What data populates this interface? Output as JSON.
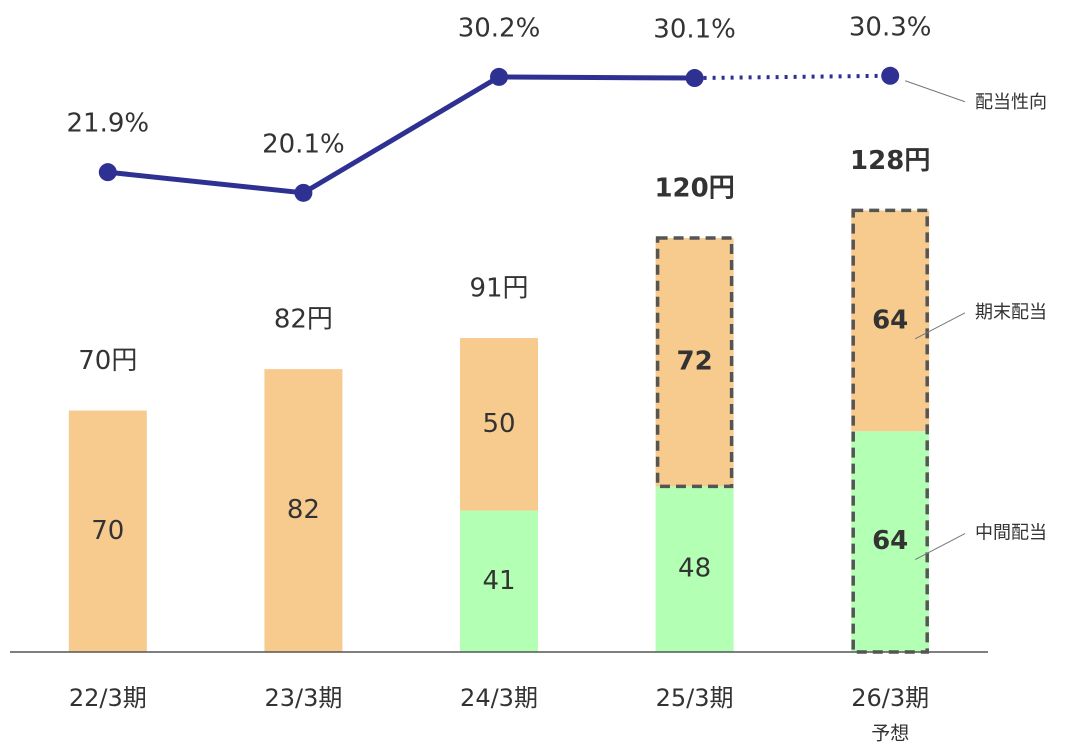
{
  "chart_data": {
    "type": "bar",
    "categories": [
      "22/3期",
      "23/3期",
      "24/3期",
      "25/3期",
      "26/3期"
    ],
    "forecast": [
      false,
      false,
      false,
      false,
      true
    ],
    "forecast_note": "予想",
    "series": [
      {
        "name": "中間配当",
        "color": "#b3ffb3",
        "values": [
          null,
          null,
          41,
          48,
          64
        ],
        "outline": [
          false,
          false,
          false,
          false,
          true
        ]
      },
      {
        "name": "期末配当",
        "color": "#f7cb8e",
        "values": [
          70,
          82,
          50,
          72,
          64
        ],
        "outline": [
          false,
          false,
          false,
          true,
          true
        ]
      }
    ],
    "totals": [
      70,
      82,
      91,
      120,
      128
    ],
    "total_labels": [
      "70円",
      "82円",
      "91円",
      "120円",
      "128円"
    ],
    "ylim": [
      0,
      189
    ],
    "line": {
      "type": "line",
      "name": "配当性向",
      "color": "#2e3192",
      "axis": "y2",
      "values": [
        21.9,
        20.1,
        30.2,
        30.1,
        30.3
      ],
      "value_labels": [
        "21.9%",
        "20.1%",
        "30.2%",
        "30.1%",
        "30.3%"
      ]
    },
    "y2lim": [
      -19.9,
      36.9
    ]
  }
}
